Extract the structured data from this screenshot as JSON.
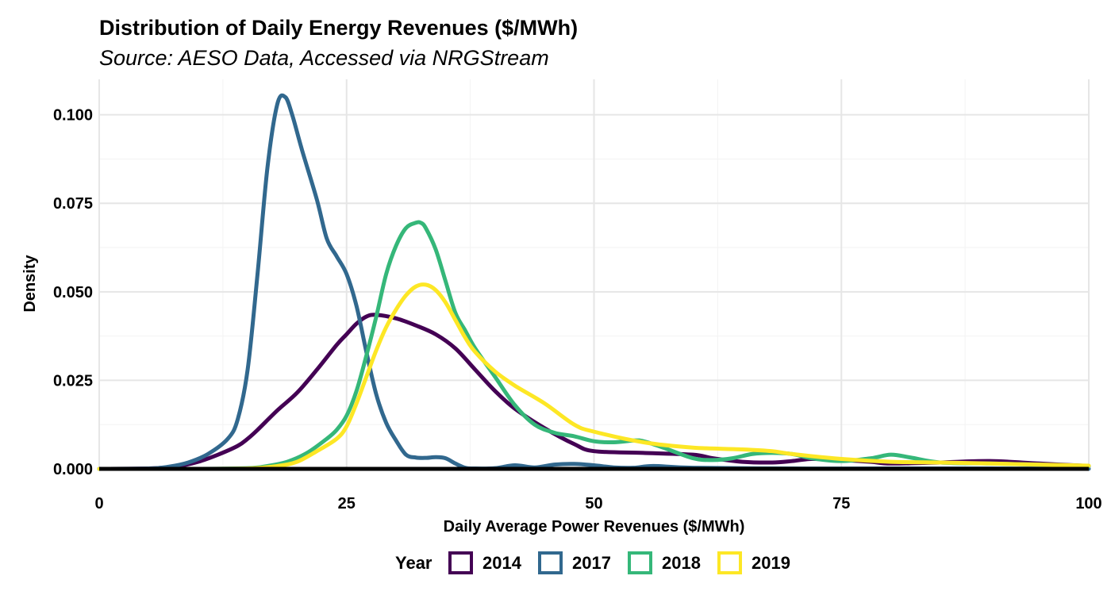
{
  "chart_data": {
    "type": "line",
    "title": "Distribution of Daily Energy Revenues ($/MWh)",
    "subtitle": "Source: AESO Data, Accessed via NRGStream",
    "xlabel": "Daily Average Power Revenues ($/MWh)",
    "ylabel": "Density",
    "xlim": [
      0,
      100
    ],
    "ylim": [
      0,
      0.11
    ],
    "x_ticks": [
      0,
      25,
      50,
      75,
      100
    ],
    "x_tick_labels": [
      "0",
      "25",
      "50",
      "75",
      "100"
    ],
    "y_ticks": [
      0,
      0.025,
      0.05,
      0.075,
      0.1
    ],
    "y_tick_labels": [
      "0.000",
      "0.025",
      "0.050",
      "0.075",
      "0.100"
    ],
    "grid": true,
    "legend": {
      "title": "Year",
      "placement": "bottom"
    },
    "series": [
      {
        "name": "2014",
        "color": "#440154",
        "x": [
          0,
          5,
          8,
          10,
          12,
          14,
          15,
          16,
          18,
          20,
          22,
          24,
          25,
          26,
          27,
          28,
          30,
          32,
          34,
          36,
          38,
          40,
          42,
          45,
          48,
          50,
          55,
          60,
          62,
          65,
          68,
          70,
          72,
          75,
          78,
          80,
          85,
          90,
          95,
          100
        ],
        "y": [
          0,
          0.0001,
          0.0008,
          0.002,
          0.004,
          0.0065,
          0.0085,
          0.011,
          0.0165,
          0.0215,
          0.028,
          0.035,
          0.038,
          0.041,
          0.043,
          0.0435,
          0.0425,
          0.0405,
          0.038,
          0.034,
          0.028,
          0.022,
          0.017,
          0.0115,
          0.007,
          0.005,
          0.0045,
          0.004,
          0.003,
          0.002,
          0.0018,
          0.0022,
          0.0028,
          0.0025,
          0.002,
          0.0015,
          0.0018,
          0.0022,
          0.0015,
          0.0008
        ]
      },
      {
        "name": "2017",
        "color": "#31688e",
        "x": [
          0,
          5,
          7,
          9,
          11,
          13,
          14,
          15,
          16,
          17,
          18,
          18.8,
          19.5,
          20.5,
          22,
          23,
          24,
          25,
          26,
          27,
          28,
          29,
          30,
          31,
          32,
          33,
          34,
          35,
          36,
          37,
          38,
          40,
          42,
          44,
          46,
          48,
          50,
          52,
          54,
          56,
          60,
          70,
          80,
          90,
          100
        ],
        "y": [
          0,
          0.0001,
          0.0006,
          0.0018,
          0.0042,
          0.0085,
          0.014,
          0.028,
          0.055,
          0.085,
          0.103,
          0.105,
          0.1,
          0.09,
          0.076,
          0.065,
          0.06,
          0.055,
          0.046,
          0.033,
          0.021,
          0.013,
          0.008,
          0.004,
          0.0032,
          0.0031,
          0.0033,
          0.003,
          0.0015,
          0.0003,
          0.0001,
          0.0002,
          0.001,
          0.0004,
          0.0012,
          0.0014,
          0.001,
          0.0004,
          0.0003,
          0.0008,
          0.0003,
          0.0001,
          0.0001,
          0.0001,
          0
        ]
      },
      {
        "name": "2018",
        "color": "#35b779",
        "x": [
          0,
          10,
          15,
          17,
          19,
          21,
          23,
          24,
          25,
          26,
          27,
          28,
          29,
          30,
          31,
          32,
          32.5,
          33,
          34,
          35,
          36,
          37,
          38,
          40,
          42,
          44,
          46,
          48,
          50,
          52,
          54,
          55,
          57,
          60,
          62,
          64,
          66,
          68,
          70,
          72,
          75,
          78,
          80,
          82,
          85,
          90,
          95,
          100
        ],
        "y": [
          0,
          0,
          0.0002,
          0.0008,
          0.002,
          0.0045,
          0.0085,
          0.011,
          0.015,
          0.022,
          0.032,
          0.043,
          0.055,
          0.063,
          0.068,
          0.0695,
          0.0695,
          0.068,
          0.062,
          0.053,
          0.044,
          0.039,
          0.034,
          0.026,
          0.018,
          0.0125,
          0.0102,
          0.0092,
          0.0078,
          0.0075,
          0.008,
          0.0078,
          0.006,
          0.003,
          0.0025,
          0.003,
          0.0042,
          0.0045,
          0.0042,
          0.003,
          0.0022,
          0.003,
          0.004,
          0.0032,
          0.0018,
          0.0015,
          0.0012,
          0.0008
        ]
      },
      {
        "name": "2019",
        "color": "#fde725",
        "x": [
          0,
          10,
          15,
          18,
          20,
          22,
          24,
          25,
          26,
          27,
          28,
          29,
          30,
          31,
          32,
          33,
          34,
          35,
          36,
          37,
          38,
          40,
          42,
          45,
          48,
          50,
          55,
          60,
          65,
          68,
          70,
          75,
          80,
          85,
          90,
          95,
          100
        ],
        "y": [
          0,
          0,
          0.0001,
          0.0008,
          0.002,
          0.005,
          0.0085,
          0.012,
          0.0185,
          0.026,
          0.0335,
          0.04,
          0.045,
          0.049,
          0.0515,
          0.052,
          0.0505,
          0.047,
          0.042,
          0.037,
          0.033,
          0.0275,
          0.0235,
          0.0185,
          0.0125,
          0.0105,
          0.0075,
          0.006,
          0.0055,
          0.005,
          0.0042,
          0.0028,
          0.002,
          0.0018,
          0.0015,
          0.0012,
          0.0009
        ]
      }
    ]
  }
}
